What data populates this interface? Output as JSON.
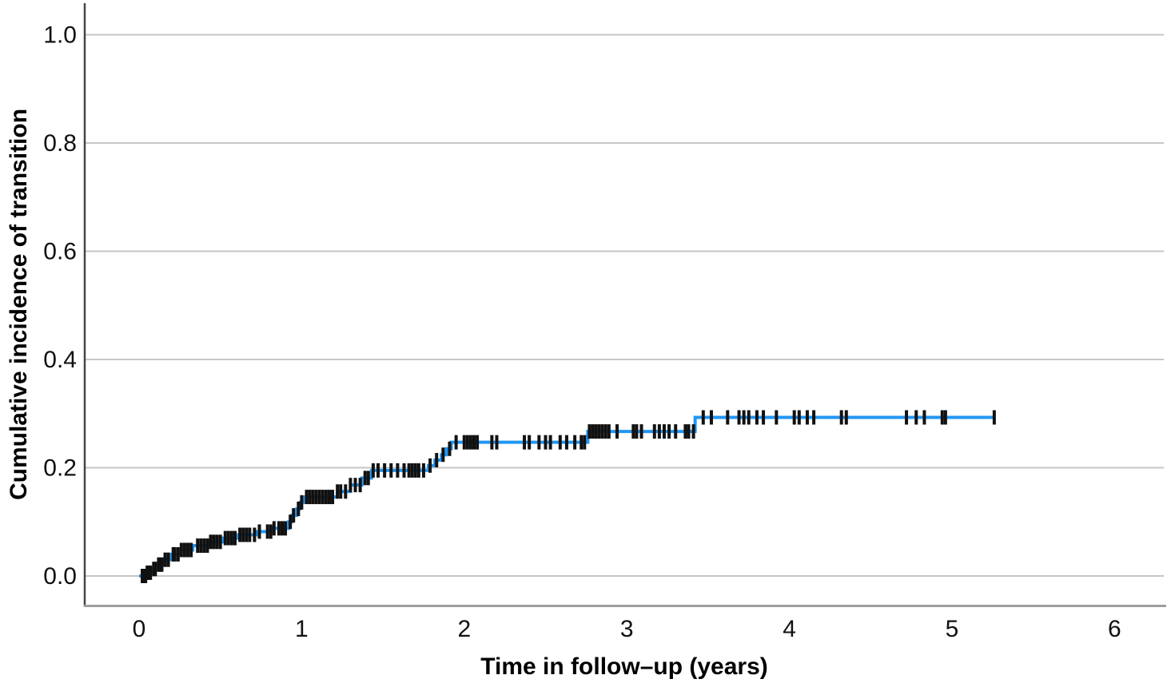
{
  "figure": {
    "background": "#ffffff"
  },
  "colors": {
    "curve": "#2196F3",
    "censor_mark": "#111111",
    "gridline": "#c6c6c6",
    "y_axis_line": "#454545",
    "x_axis_line": "#9e9e9e",
    "tick_text": "#111111"
  },
  "y_axis": {
    "title": "Cumulative incidence of transition",
    "tick_labels": [
      "0.0",
      "0.2",
      "0.4",
      "0.6",
      "0.8",
      "1.0"
    ],
    "tick_values": [
      0.0,
      0.2,
      0.4,
      0.6,
      0.8,
      1.0
    ]
  },
  "x_axis": {
    "title": "Time in follow–up (years)",
    "tick_labels": [
      "0",
      "1",
      "2",
      "3",
      "4",
      "5",
      "6"
    ],
    "tick_values": [
      0,
      1,
      2,
      3,
      4,
      5,
      6
    ]
  },
  "chart_data": {
    "type": "line",
    "subtype": "step-cumulative-incidence",
    "title": "",
    "xlabel": "Time in follow–up (years)",
    "ylabel": "Cumulative incidence of transition",
    "xlim": [
      -0.33,
      6.3
    ],
    "ylim": [
      -0.05,
      1.06
    ],
    "grid": "horizontal",
    "legend": "none",
    "series": [
      {
        "color": "#2196F3",
        "steps": [
          [
            0.0,
            0.0
          ],
          [
            0.05,
            0.006
          ],
          [
            0.08,
            0.013
          ],
          [
            0.11,
            0.021
          ],
          [
            0.15,
            0.03
          ],
          [
            0.2,
            0.04
          ],
          [
            0.25,
            0.048
          ],
          [
            0.33,
            0.056
          ],
          [
            0.43,
            0.063
          ],
          [
            0.52,
            0.07
          ],
          [
            0.61,
            0.076
          ],
          [
            0.72,
            0.082
          ],
          [
            0.82,
            0.088
          ],
          [
            0.92,
            0.1
          ],
          [
            0.94,
            0.112
          ],
          [
            0.97,
            0.124
          ],
          [
            0.99,
            0.136
          ],
          [
            1.01,
            0.146
          ],
          [
            1.22,
            0.156
          ],
          [
            1.3,
            0.168
          ],
          [
            1.37,
            0.181
          ],
          [
            1.43,
            0.195
          ],
          [
            1.78,
            0.204
          ],
          [
            1.82,
            0.214
          ],
          [
            1.86,
            0.224
          ],
          [
            1.89,
            0.235
          ],
          [
            1.92,
            0.247
          ],
          [
            2.76,
            0.267
          ],
          [
            3.42,
            0.293
          ]
        ],
        "end_time": 5.26,
        "censor_times": [
          0.02,
          0.03,
          0.04,
          0.05,
          0.06,
          0.07,
          0.09,
          0.1,
          0.12,
          0.13,
          0.14,
          0.16,
          0.18,
          0.21,
          0.22,
          0.24,
          0.26,
          0.28,
          0.3,
          0.32,
          0.36,
          0.38,
          0.4,
          0.42,
          0.44,
          0.46,
          0.48,
          0.5,
          0.53,
          0.55,
          0.57,
          0.59,
          0.62,
          0.64,
          0.66,
          0.68,
          0.71,
          0.74,
          0.79,
          0.81,
          0.83,
          0.86,
          0.88,
          0.9,
          0.93,
          0.95,
          0.98,
          1.0,
          1.03,
          1.05,
          1.07,
          1.09,
          1.11,
          1.13,
          1.15,
          1.17,
          1.19,
          1.22,
          1.24,
          1.27,
          1.3,
          1.33,
          1.36,
          1.39,
          1.41,
          1.44,
          1.47,
          1.51,
          1.55,
          1.59,
          1.63,
          1.66,
          1.68,
          1.7,
          1.72,
          1.75,
          1.79,
          1.83,
          1.87,
          1.91,
          1.95,
          2.0,
          2.02,
          2.04,
          2.06,
          2.08,
          2.17,
          2.2,
          2.37,
          2.4,
          2.46,
          2.5,
          2.53,
          2.59,
          2.63,
          2.68,
          2.72,
          2.74,
          2.77,
          2.79,
          2.81,
          2.83,
          2.85,
          2.87,
          2.89,
          2.94,
          3.04,
          3.06,
          3.09,
          3.17,
          3.2,
          3.23,
          3.26,
          3.3,
          3.36,
          3.38,
          3.41,
          3.47,
          3.52,
          3.62,
          3.69,
          3.72,
          3.75,
          3.8,
          3.84,
          3.92,
          4.03,
          4.06,
          4.11,
          4.15,
          4.32,
          4.35,
          4.72,
          4.78,
          4.83,
          4.94,
          4.96,
          5.26
        ]
      }
    ]
  }
}
